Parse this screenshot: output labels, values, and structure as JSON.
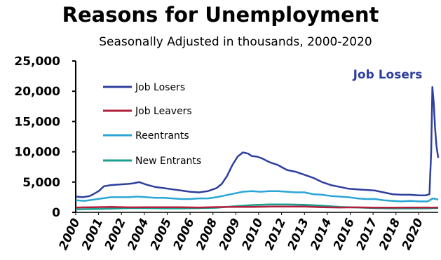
{
  "chart_data": {
    "type": "line",
    "title": "Reasons for Unemployment",
    "subtitle": "Seasonally Adjusted in thousands, 2000-2020",
    "ylim": [
      0,
      25000
    ],
    "yticks": [
      0,
      5000,
      10000,
      15000,
      20000,
      25000
    ],
    "ytick_labels": [
      "0",
      "5,000",
      "10,000",
      "15,000",
      "20,000",
      "25,000"
    ],
    "xlim": [
      2000,
      2020.6
    ],
    "xtick_labels": [
      "2000",
      "2001",
      "2002",
      "2004",
      "2005",
      "2006",
      "2008",
      "2009",
      "2010",
      "2012",
      "2013",
      "2014",
      "2016",
      "2017",
      "2018",
      "2020"
    ],
    "xtick_positions": [
      2000,
      2001.3,
      2002.6,
      2003.9,
      2005.2,
      2006.5,
      2007.8,
      2009.1,
      2010.4,
      2011.7,
      2013.0,
      2014.3,
      2015.6,
      2016.9,
      2018.2,
      2019.5
    ],
    "grid": false,
    "legend_position": "upper-left",
    "annotation": {
      "text": "Job Losers",
      "color": "#2e3f9e"
    },
    "series": [
      {
        "name": "Job Losers",
        "color": "#2e3f9e",
        "points": [
          [
            2000.0,
            2600
          ],
          [
            2000.4,
            2500
          ],
          [
            2000.8,
            2700
          ],
          [
            2001.0,
            3000
          ],
          [
            2001.3,
            3500
          ],
          [
            2001.6,
            4300
          ],
          [
            2002.0,
            4500
          ],
          [
            2002.5,
            4600
          ],
          [
            2003.0,
            4700
          ],
          [
            2003.3,
            4800
          ],
          [
            2003.6,
            5000
          ],
          [
            2004.0,
            4600
          ],
          [
            2004.5,
            4200
          ],
          [
            2005.0,
            4000
          ],
          [
            2005.5,
            3800
          ],
          [
            2006.0,
            3600
          ],
          [
            2006.5,
            3400
          ],
          [
            2007.0,
            3300
          ],
          [
            2007.5,
            3500
          ],
          [
            2008.0,
            4000
          ],
          [
            2008.3,
            4700
          ],
          [
            2008.6,
            6000
          ],
          [
            2008.9,
            7800
          ],
          [
            2009.2,
            9200
          ],
          [
            2009.5,
            9900
          ],
          [
            2009.8,
            9700
          ],
          [
            2010.0,
            9300
          ],
          [
            2010.3,
            9200
          ],
          [
            2010.6,
            8900
          ],
          [
            2011.0,
            8300
          ],
          [
            2011.5,
            7800
          ],
          [
            2012.0,
            7000
          ],
          [
            2012.5,
            6700
          ],
          [
            2013.0,
            6200
          ],
          [
            2013.5,
            5700
          ],
          [
            2014.0,
            5000
          ],
          [
            2014.5,
            4500
          ],
          [
            2015.0,
            4200
          ],
          [
            2015.5,
            3900
          ],
          [
            2016.0,
            3800
          ],
          [
            2016.5,
            3700
          ],
          [
            2017.0,
            3600
          ],
          [
            2017.5,
            3300
          ],
          [
            2018.0,
            3000
          ],
          [
            2018.5,
            2900
          ],
          [
            2019.0,
            2900
          ],
          [
            2019.5,
            2800
          ],
          [
            2019.9,
            2800
          ],
          [
            2020.1,
            3000
          ],
          [
            2020.2,
            10000
          ],
          [
            2020.27,
            20700
          ],
          [
            2020.35,
            18000
          ],
          [
            2020.42,
            14000
          ],
          [
            2020.5,
            11000
          ],
          [
            2020.6,
            9000
          ]
        ]
      },
      {
        "name": "Job Leavers",
        "color": "#b21f3c",
        "points": [
          [
            2000.0,
            800
          ],
          [
            2001.0,
            850
          ],
          [
            2002.0,
            900
          ],
          [
            2003.0,
            820
          ],
          [
            2004.0,
            850
          ],
          [
            2005.0,
            850
          ],
          [
            2006.0,
            830
          ],
          [
            2007.0,
            800
          ],
          [
            2008.0,
            870
          ],
          [
            2009.0,
            900
          ],
          [
            2010.0,
            900
          ],
          [
            2011.0,
            950
          ],
          [
            2012.0,
            950
          ],
          [
            2013.0,
            950
          ],
          [
            2014.0,
            850
          ],
          [
            2015.0,
            800
          ],
          [
            2016.0,
            820
          ],
          [
            2017.0,
            780
          ],
          [
            2018.0,
            780
          ],
          [
            2019.0,
            800
          ],
          [
            2020.0,
            800
          ],
          [
            2020.3,
            780
          ],
          [
            2020.6,
            800
          ]
        ]
      },
      {
        "name": "Reentrants",
        "color": "#2aa6d6",
        "points": [
          [
            2000.0,
            2000
          ],
          [
            2000.5,
            1900
          ],
          [
            2001.0,
            2100
          ],
          [
            2001.5,
            2300
          ],
          [
            2002.0,
            2500
          ],
          [
            2002.5,
            2500
          ],
          [
            2003.0,
            2500
          ],
          [
            2003.5,
            2600
          ],
          [
            2004.0,
            2500
          ],
          [
            2004.5,
            2400
          ],
          [
            2005.0,
            2400
          ],
          [
            2005.5,
            2300
          ],
          [
            2006.0,
            2200
          ],
          [
            2006.5,
            2200
          ],
          [
            2007.0,
            2300
          ],
          [
            2007.5,
            2300
          ],
          [
            2008.0,
            2500
          ],
          [
            2008.5,
            2800
          ],
          [
            2009.0,
            3100
          ],
          [
            2009.5,
            3400
          ],
          [
            2010.0,
            3500
          ],
          [
            2010.5,
            3400
          ],
          [
            2011.0,
            3500
          ],
          [
            2011.5,
            3500
          ],
          [
            2012.0,
            3400
          ],
          [
            2012.5,
            3300
          ],
          [
            2013.0,
            3300
          ],
          [
            2013.5,
            3000
          ],
          [
            2014.0,
            2900
          ],
          [
            2014.5,
            2700
          ],
          [
            2015.0,
            2600
          ],
          [
            2015.5,
            2500
          ],
          [
            2016.0,
            2300
          ],
          [
            2016.5,
            2200
          ],
          [
            2017.0,
            2200
          ],
          [
            2017.5,
            2000
          ],
          [
            2018.0,
            1900
          ],
          [
            2018.5,
            1800
          ],
          [
            2019.0,
            1900
          ],
          [
            2019.5,
            1800
          ],
          [
            2020.0,
            1800
          ],
          [
            2020.3,
            2300
          ],
          [
            2020.6,
            2100
          ]
        ]
      },
      {
        "name": "New Entrants",
        "color": "#1b9e8c",
        "points": [
          [
            2000.0,
            500
          ],
          [
            2001.0,
            550
          ],
          [
            2002.0,
            600
          ],
          [
            2003.0,
            700
          ],
          [
            2004.0,
            700
          ],
          [
            2005.0,
            650
          ],
          [
            2006.0,
            650
          ],
          [
            2007.0,
            700
          ],
          [
            2008.0,
            750
          ],
          [
            2009.0,
            1000
          ],
          [
            2010.0,
            1200
          ],
          [
            2011.0,
            1300
          ],
          [
            2012.0,
            1300
          ],
          [
            2013.0,
            1250
          ],
          [
            2014.0,
            1100
          ],
          [
            2015.0,
            900
          ],
          [
            2016.0,
            800
          ],
          [
            2017.0,
            700
          ],
          [
            2018.0,
            650
          ],
          [
            2019.0,
            650
          ],
          [
            2020.0,
            650
          ],
          [
            2020.3,
            700
          ],
          [
            2020.6,
            700
          ]
        ]
      }
    ]
  }
}
